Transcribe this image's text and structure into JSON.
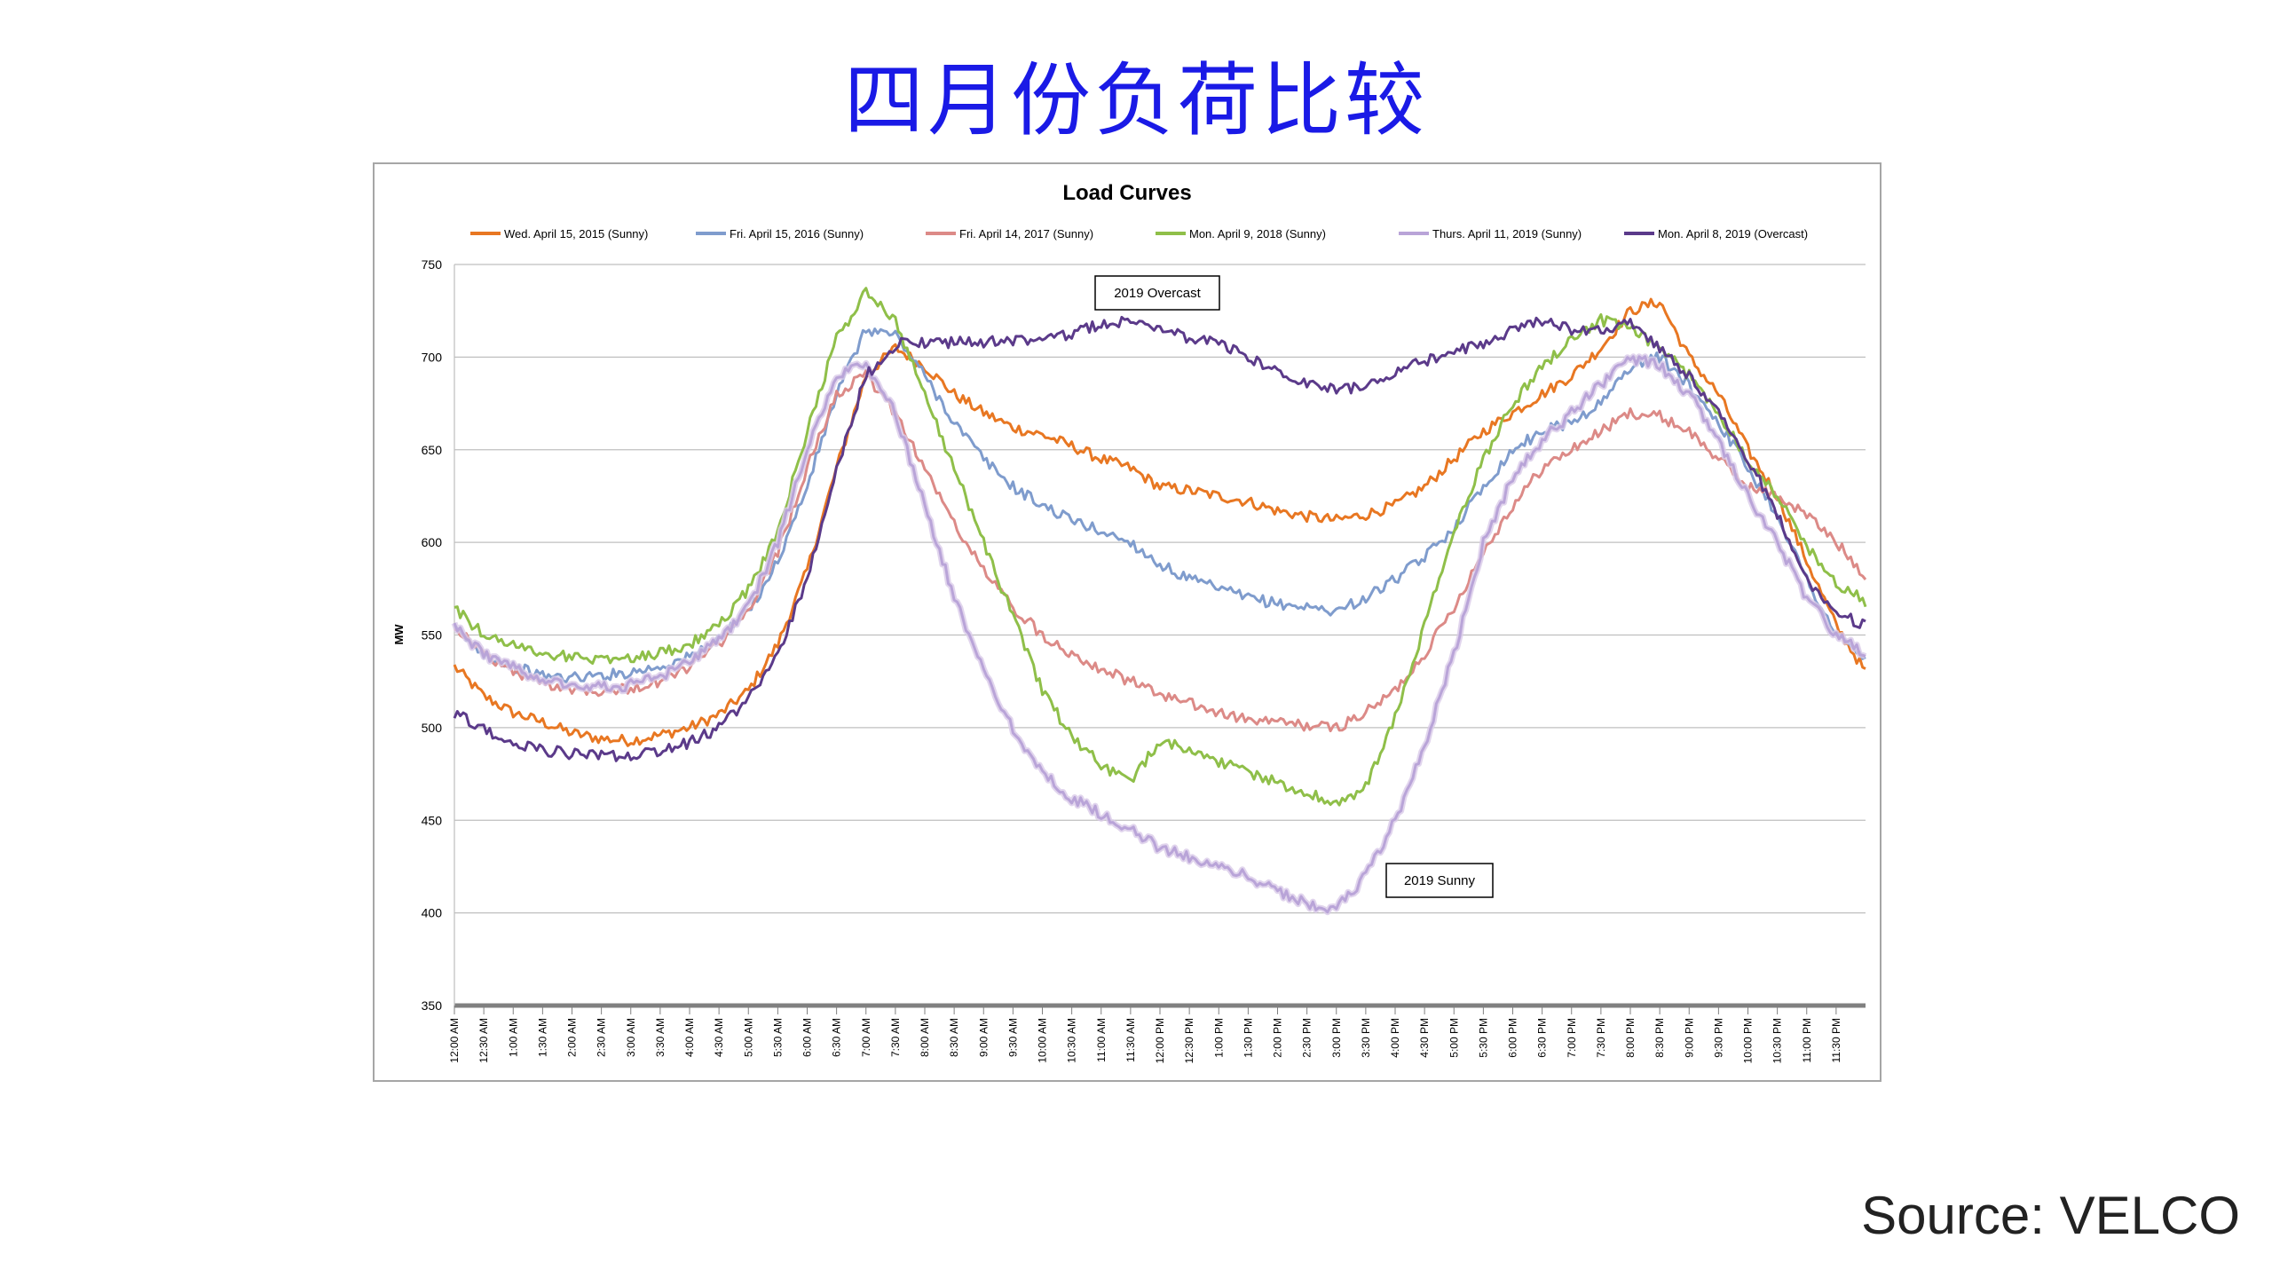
{
  "slide": {
    "title": "四月份负荷比较",
    "source": "Source: VELCO"
  },
  "chart_data": {
    "type": "line",
    "title": "Load Curves",
    "ylabel": "MW",
    "xlabel": "",
    "ylim": [
      350,
      750
    ],
    "yticks": [
      350,
      400,
      450,
      500,
      550,
      600,
      650,
      700,
      750
    ],
    "grid": true,
    "legend_position": "top",
    "x_tick_labels": [
      "12:00 AM",
      "12:30 AM",
      "1:00 AM",
      "1:30 AM",
      "2:00 AM",
      "2:30 AM",
      "3:00 AM",
      "3:30 AM",
      "4:00 AM",
      "4:30 AM",
      "5:00 AM",
      "5:30 AM",
      "6:00 AM",
      "6:30 AM",
      "7:00 AM",
      "7:30 AM",
      "8:00 AM",
      "8:30 AM",
      "9:00 AM",
      "9:30 AM",
      "10:00 AM",
      "10:30 AM",
      "11:00 AM",
      "11:30 AM",
      "12:00 PM",
      "12:30 PM",
      "1:00 PM",
      "1:30 PM",
      "2:00 PM",
      "2:30 PM",
      "3:00 PM",
      "3:30 PM",
      "4:00 PM",
      "4:30 PM",
      "5:00 PM",
      "5:30 PM",
      "6:00 PM",
      "6:30 PM",
      "7:00 PM",
      "7:30 PM",
      "8:00 PM",
      "8:30 PM",
      "9:00 PM",
      "9:30 PM",
      "10:00 PM",
      "10:30 PM",
      "11:00 PM",
      "11:30 PM"
    ],
    "x_hours": [
      0,
      0.5,
      1,
      1.5,
      2,
      2.5,
      3,
      3.5,
      4,
      4.5,
      5,
      5.5,
      6,
      6.5,
      7,
      7.5,
      8,
      8.5,
      9,
      9.5,
      10,
      10.5,
      11,
      11.5,
      12,
      12.5,
      13,
      13.5,
      14,
      14.5,
      15,
      15.5,
      16,
      16.5,
      17,
      17.5,
      18,
      18.5,
      19,
      19.5,
      20,
      20.5,
      21,
      21.5,
      22,
      22.5,
      23,
      23.5,
      24
    ],
    "series": [
      {
        "name": "Wed. April 15, 2015 (Sunny)",
        "color": "#e87722",
        "values": [
          533,
          517,
          508,
          503,
          497,
          494,
          493,
          496,
          500,
          507,
          520,
          545,
          585,
          640,
          690,
          705,
          695,
          680,
          670,
          662,
          658,
          652,
          645,
          640,
          630,
          628,
          625,
          622,
          617,
          614,
          612,
          615,
          620,
          630,
          645,
          660,
          670,
          680,
          690,
          705,
          725,
          730,
          700,
          680,
          650,
          625,
          590,
          555,
          530
        ]
      },
      {
        "name": "Fri. April 15, 2016 (Sunny)",
        "color": "#7f9ccd",
        "values": [
          553,
          540,
          533,
          528,
          527,
          528,
          530,
          533,
          538,
          548,
          562,
          590,
          630,
          680,
          715,
          712,
          690,
          665,
          645,
          630,
          620,
          612,
          606,
          600,
          588,
          580,
          575,
          570,
          567,
          565,
          563,
          570,
          580,
          592,
          608,
          630,
          650,
          660,
          665,
          675,
          695,
          700,
          685,
          665,
          640,
          615,
          580,
          550,
          537
        ]
      },
      {
        "name": "Fri. April 14, 2017 (Sunny)",
        "color": "#dc8a87",
        "values": [
          555,
          540,
          530,
          524,
          521,
          520,
          521,
          525,
          533,
          545,
          562,
          595,
          640,
          680,
          690,
          670,
          640,
          610,
          585,
          565,
          550,
          540,
          532,
          525,
          518,
          513,
          508,
          504,
          503,
          501,
          500,
          508,
          520,
          540,
          565,
          595,
          620,
          640,
          650,
          660,
          670,
          668,
          660,
          645,
          630,
          625,
          615,
          600,
          582
        ]
      },
      {
        "name": "Mon. April 9, 2018 (Sunny)",
        "color": "#8fbf49",
        "values": [
          565,
          550,
          545,
          540,
          538,
          537,
          538,
          540,
          545,
          555,
          575,
          605,
          660,
          710,
          735,
          720,
          680,
          640,
          600,
          560,
          520,
          495,
          480,
          470,
          493,
          488,
          482,
          476,
          470,
          465,
          458,
          468,
          505,
          555,
          605,
          645,
          675,
          695,
          710,
          720,
          715,
          705,
          690,
          670,
          645,
          625,
          598,
          578,
          568
        ]
      },
      {
        "name": "Thurs. April 11, 2019 (Sunny)",
        "color": "#b9a4d8",
        "values": [
          555,
          540,
          532,
          527,
          523,
          522,
          523,
          527,
          535,
          548,
          565,
          600,
          650,
          690,
          695,
          670,
          620,
          570,
          530,
          500,
          475,
          462,
          453,
          445,
          435,
          430,
          425,
          420,
          412,
          405,
          402,
          420,
          450,
          490,
          540,
          600,
          635,
          655,
          670,
          685,
          700,
          695,
          680,
          655,
          625,
          600,
          570,
          550,
          540
        ]
      },
      {
        "name": "Mon. April 8, 2019 (Overcast)",
        "color": "#5b3a8a",
        "values": [
          508,
          499,
          492,
          488,
          486,
          485,
          485,
          487,
          492,
          500,
          515,
          540,
          580,
          640,
          690,
          707,
          708,
          708,
          708,
          709,
          710,
          712,
          718,
          720,
          715,
          710,
          708,
          700,
          692,
          686,
          682,
          685,
          692,
          698,
          703,
          707,
          715,
          720,
          715,
          715,
          718,
          705,
          690,
          670,
          645,
          615,
          580,
          562,
          555
        ]
      }
    ],
    "annotations": [
      "2019 Overcast",
      "2019 Sunny"
    ]
  }
}
